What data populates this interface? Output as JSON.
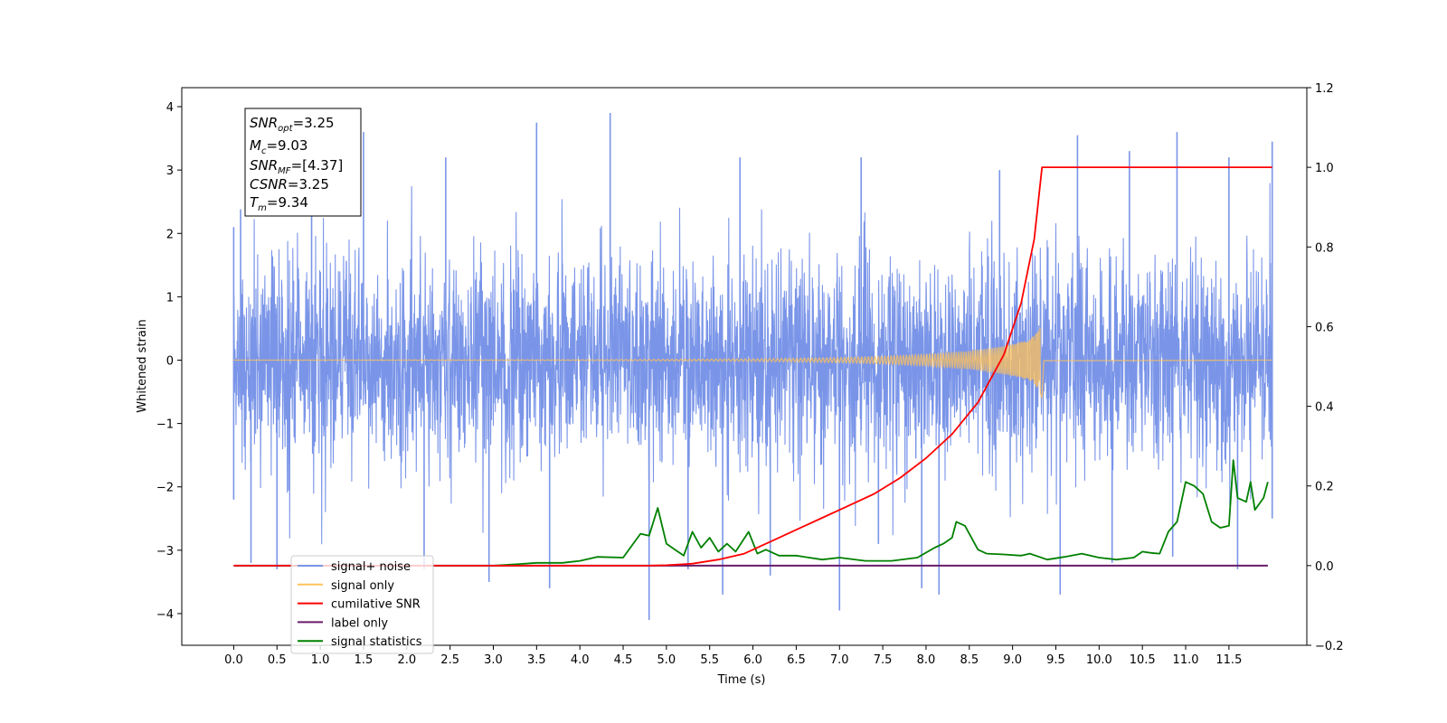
{
  "chart_data": {
    "type": "line",
    "xlabel": "Time (s)",
    "ylabel_left": "Whitened strain",
    "ylabel_right": "",
    "xlim": [
      -0.6,
      12.4
    ],
    "ylim_left": [
      -4.5,
      4.3
    ],
    "ylim_right": [
      -0.2,
      1.2
    ],
    "x_ticks": [
      "0.0",
      "0.5",
      "1.0",
      "1.5",
      "2.0",
      "2.5",
      "3.0",
      "3.5",
      "4.0",
      "4.5",
      "5.0",
      "5.5",
      "6.0",
      "6.5",
      "7.0",
      "7.5",
      "8.0",
      "8.5",
      "9.0",
      "9.5",
      "10.0",
      "10.5",
      "11.0",
      "11.5"
    ],
    "y_ticks_left": [
      "4",
      "3",
      "2",
      "1",
      "0",
      "−1",
      "−2",
      "−3",
      "−4"
    ],
    "y_ticks_right": [
      "1.2",
      "1.0",
      "0.8",
      "0.6",
      "0.4",
      "0.2",
      "0.0",
      "−0.2"
    ],
    "grid": false,
    "legend_placement": "lower-left",
    "info_box": {
      "snr_opt_main": "SNR",
      "snr_opt_sub": "opt",
      "snr_opt_val": "=3.25",
      "mc_main": "M",
      "mc_sub": "c",
      "mc_val": "=9.03",
      "snr_mf_main": "SNR",
      "snr_mf_sub": "MF",
      "snr_mf_val": "=[4.37]",
      "csnr_main": "CSNR",
      "csnr_val": "=3.25",
      "tm_main": "T",
      "tm_sub": "m",
      "tm_val": "=9.34"
    },
    "series": [
      {
        "name": "signal+ noise",
        "axis": "left",
        "color": "#7a95e8",
        "kind": "noise band",
        "x_range": [
          0.0,
          12.0
        ],
        "typical_envelope": [
          -1.7,
          1.7
        ],
        "peaks_up": [
          [
            0.0,
            2.1
          ],
          [
            0.08,
            2.38
          ],
          [
            0.9,
            2.5
          ],
          [
            1.5,
            3.6
          ],
          [
            2.45,
            3.2
          ],
          [
            3.5,
            3.75
          ],
          [
            4.35,
            3.9
          ],
          [
            5.85,
            3.2
          ],
          [
            7.25,
            3.2
          ],
          [
            8.85,
            3.0
          ],
          [
            9.75,
            3.55
          ],
          [
            10.35,
            3.3
          ],
          [
            10.9,
            3.6
          ],
          [
            11.5,
            3.2
          ],
          [
            12.0,
            3.45
          ]
        ],
        "peaks_down": [
          [
            0.0,
            -2.2
          ],
          [
            0.2,
            -3.2
          ],
          [
            0.5,
            -3.3
          ],
          [
            2.2,
            -3.3
          ],
          [
            2.95,
            -3.5
          ],
          [
            3.65,
            -3.6
          ],
          [
            4.8,
            -4.1
          ],
          [
            5.25,
            -3.3
          ],
          [
            5.65,
            -3.7
          ],
          [
            6.2,
            -3.4
          ],
          [
            7.0,
            -3.95
          ],
          [
            7.45,
            -2.9
          ],
          [
            7.95,
            -3.6
          ],
          [
            8.15,
            -3.7
          ],
          [
            9.55,
            -3.7
          ],
          [
            10.15,
            -3.2
          ],
          [
            10.85,
            -3.1
          ],
          [
            11.6,
            -3.3
          ],
          [
            12.0,
            -2.5
          ]
        ]
      },
      {
        "name": "signal only",
        "axis": "left",
        "color": "#ffc25a",
        "kind": "chirp",
        "x": [
          0.0,
          4.0,
          6.0,
          7.0,
          7.5,
          8.0,
          8.5,
          8.8,
          9.0,
          9.2,
          9.3,
          9.34,
          9.36,
          12.0
        ],
        "amplitude": [
          0.0,
          0.005,
          0.02,
          0.04,
          0.06,
          0.09,
          0.14,
          0.2,
          0.25,
          0.33,
          0.45,
          0.6,
          0.01,
          0.0
        ]
      },
      {
        "name": "cumilative SNR",
        "axis": "right",
        "color": "#ff0000",
        "x": [
          0.0,
          4.8,
          5.0,
          5.3,
          5.6,
          5.9,
          6.2,
          6.5,
          6.8,
          7.1,
          7.4,
          7.7,
          8.0,
          8.3,
          8.6,
          8.9,
          9.1,
          9.25,
          9.34,
          12.0
        ],
        "values": [
          0.0,
          0.0,
          0.001,
          0.005,
          0.015,
          0.03,
          0.06,
          0.09,
          0.12,
          0.15,
          0.18,
          0.22,
          0.27,
          0.33,
          0.41,
          0.53,
          0.66,
          0.82,
          1.0,
          1.0
        ]
      },
      {
        "name": "label only",
        "axis": "right",
        "color": "#6a1b6a",
        "x": [
          0.0,
          11.95
        ],
        "values": [
          0.0,
          0.0
        ]
      },
      {
        "name": "signal statistics",
        "axis": "right",
        "color": "#008000",
        "x": [
          0.0,
          3.0,
          3.3,
          3.5,
          3.8,
          4.0,
          4.2,
          4.5,
          4.7,
          4.8,
          4.9,
          5.0,
          5.1,
          5.2,
          5.3,
          5.4,
          5.5,
          5.6,
          5.7,
          5.8,
          5.95,
          6.05,
          6.15,
          6.3,
          6.5,
          6.8,
          7.0,
          7.3,
          7.6,
          7.9,
          8.1,
          8.2,
          8.3,
          8.35,
          8.45,
          8.6,
          8.7,
          8.9,
          9.1,
          9.2,
          9.4,
          9.6,
          9.8,
          10.0,
          10.2,
          10.4,
          10.5,
          10.6,
          10.7,
          10.8,
          10.9,
          11.0,
          11.1,
          11.2,
          11.3,
          11.4,
          11.5,
          11.55,
          11.6,
          11.7,
          11.75,
          11.8,
          11.9,
          11.95
        ],
        "values": [
          0.0,
          0.0,
          0.004,
          0.007,
          0.007,
          0.012,
          0.022,
          0.02,
          0.08,
          0.075,
          0.145,
          0.055,
          0.04,
          0.025,
          0.085,
          0.045,
          0.07,
          0.035,
          0.055,
          0.035,
          0.085,
          0.03,
          0.04,
          0.025,
          0.025,
          0.015,
          0.02,
          0.012,
          0.012,
          0.02,
          0.045,
          0.055,
          0.07,
          0.11,
          0.1,
          0.04,
          0.03,
          0.028,
          0.025,
          0.03,
          0.015,
          0.022,
          0.03,
          0.02,
          0.015,
          0.02,
          0.035,
          0.032,
          0.03,
          0.085,
          0.11,
          0.21,
          0.2,
          0.18,
          0.11,
          0.095,
          0.1,
          0.265,
          0.17,
          0.16,
          0.21,
          0.14,
          0.17,
          0.21
        ]
      }
    ]
  }
}
